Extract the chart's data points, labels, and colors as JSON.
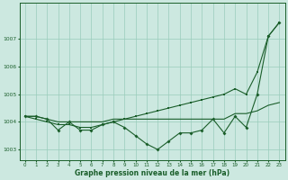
{
  "x": [
    0,
    1,
    2,
    3,
    4,
    5,
    6,
    7,
    8,
    9,
    10,
    11,
    12,
    13,
    14,
    15,
    16,
    17,
    18,
    19,
    20,
    21,
    22,
    23
  ],
  "series1": [
    1004.2,
    1004.2,
    1004.1,
    1003.7,
    1004.0,
    1003.7,
    1003.7,
    1003.9,
    1004.0,
    1003.8,
    1003.5,
    1003.2,
    1003.0,
    1003.3,
    1003.6,
    1003.6,
    1003.7,
    1004.1,
    1003.6,
    1004.2,
    1003.8,
    1005.0,
    1007.1,
    1007.6
  ],
  "series2": [
    1004.2,
    1004.1,
    1004.0,
    1003.9,
    1003.9,
    1003.8,
    1003.8,
    1003.9,
    1004.0,
    1004.1,
    1004.2,
    1004.3,
    1004.4,
    1004.5,
    1004.6,
    1004.7,
    1004.8,
    1004.9,
    1005.0,
    1005.2,
    1005.0,
    1005.8,
    1007.1,
    1007.6
  ],
  "series3": [
    1004.2,
    1004.2,
    1004.1,
    1004.0,
    1004.0,
    1004.0,
    1004.0,
    1004.0,
    1004.1,
    1004.1,
    1004.1,
    1004.1,
    1004.1,
    1004.1,
    1004.1,
    1004.1,
    1004.1,
    1004.1,
    1004.1,
    1004.3,
    1004.3,
    1004.4,
    1004.6,
    1004.7
  ],
  "bg_color": "#cce8e0",
  "grid_color": "#99ccbb",
  "line_color": "#1a5e2a",
  "xlabel": "Graphe pression niveau de la mer (hPa)",
  "xlim": [
    -0.5,
    23.5
  ],
  "ylim": [
    1002.6,
    1008.3
  ],
  "yticks": [
    1003,
    1004,
    1005,
    1006,
    1007
  ],
  "xticks": [
    0,
    1,
    2,
    3,
    4,
    5,
    6,
    7,
    8,
    9,
    10,
    11,
    12,
    13,
    14,
    15,
    16,
    17,
    18,
    19,
    20,
    21,
    22,
    23
  ],
  "xlabel_fontsize": 5.5,
  "tick_fontsize": 4.0,
  "lw": 0.8
}
